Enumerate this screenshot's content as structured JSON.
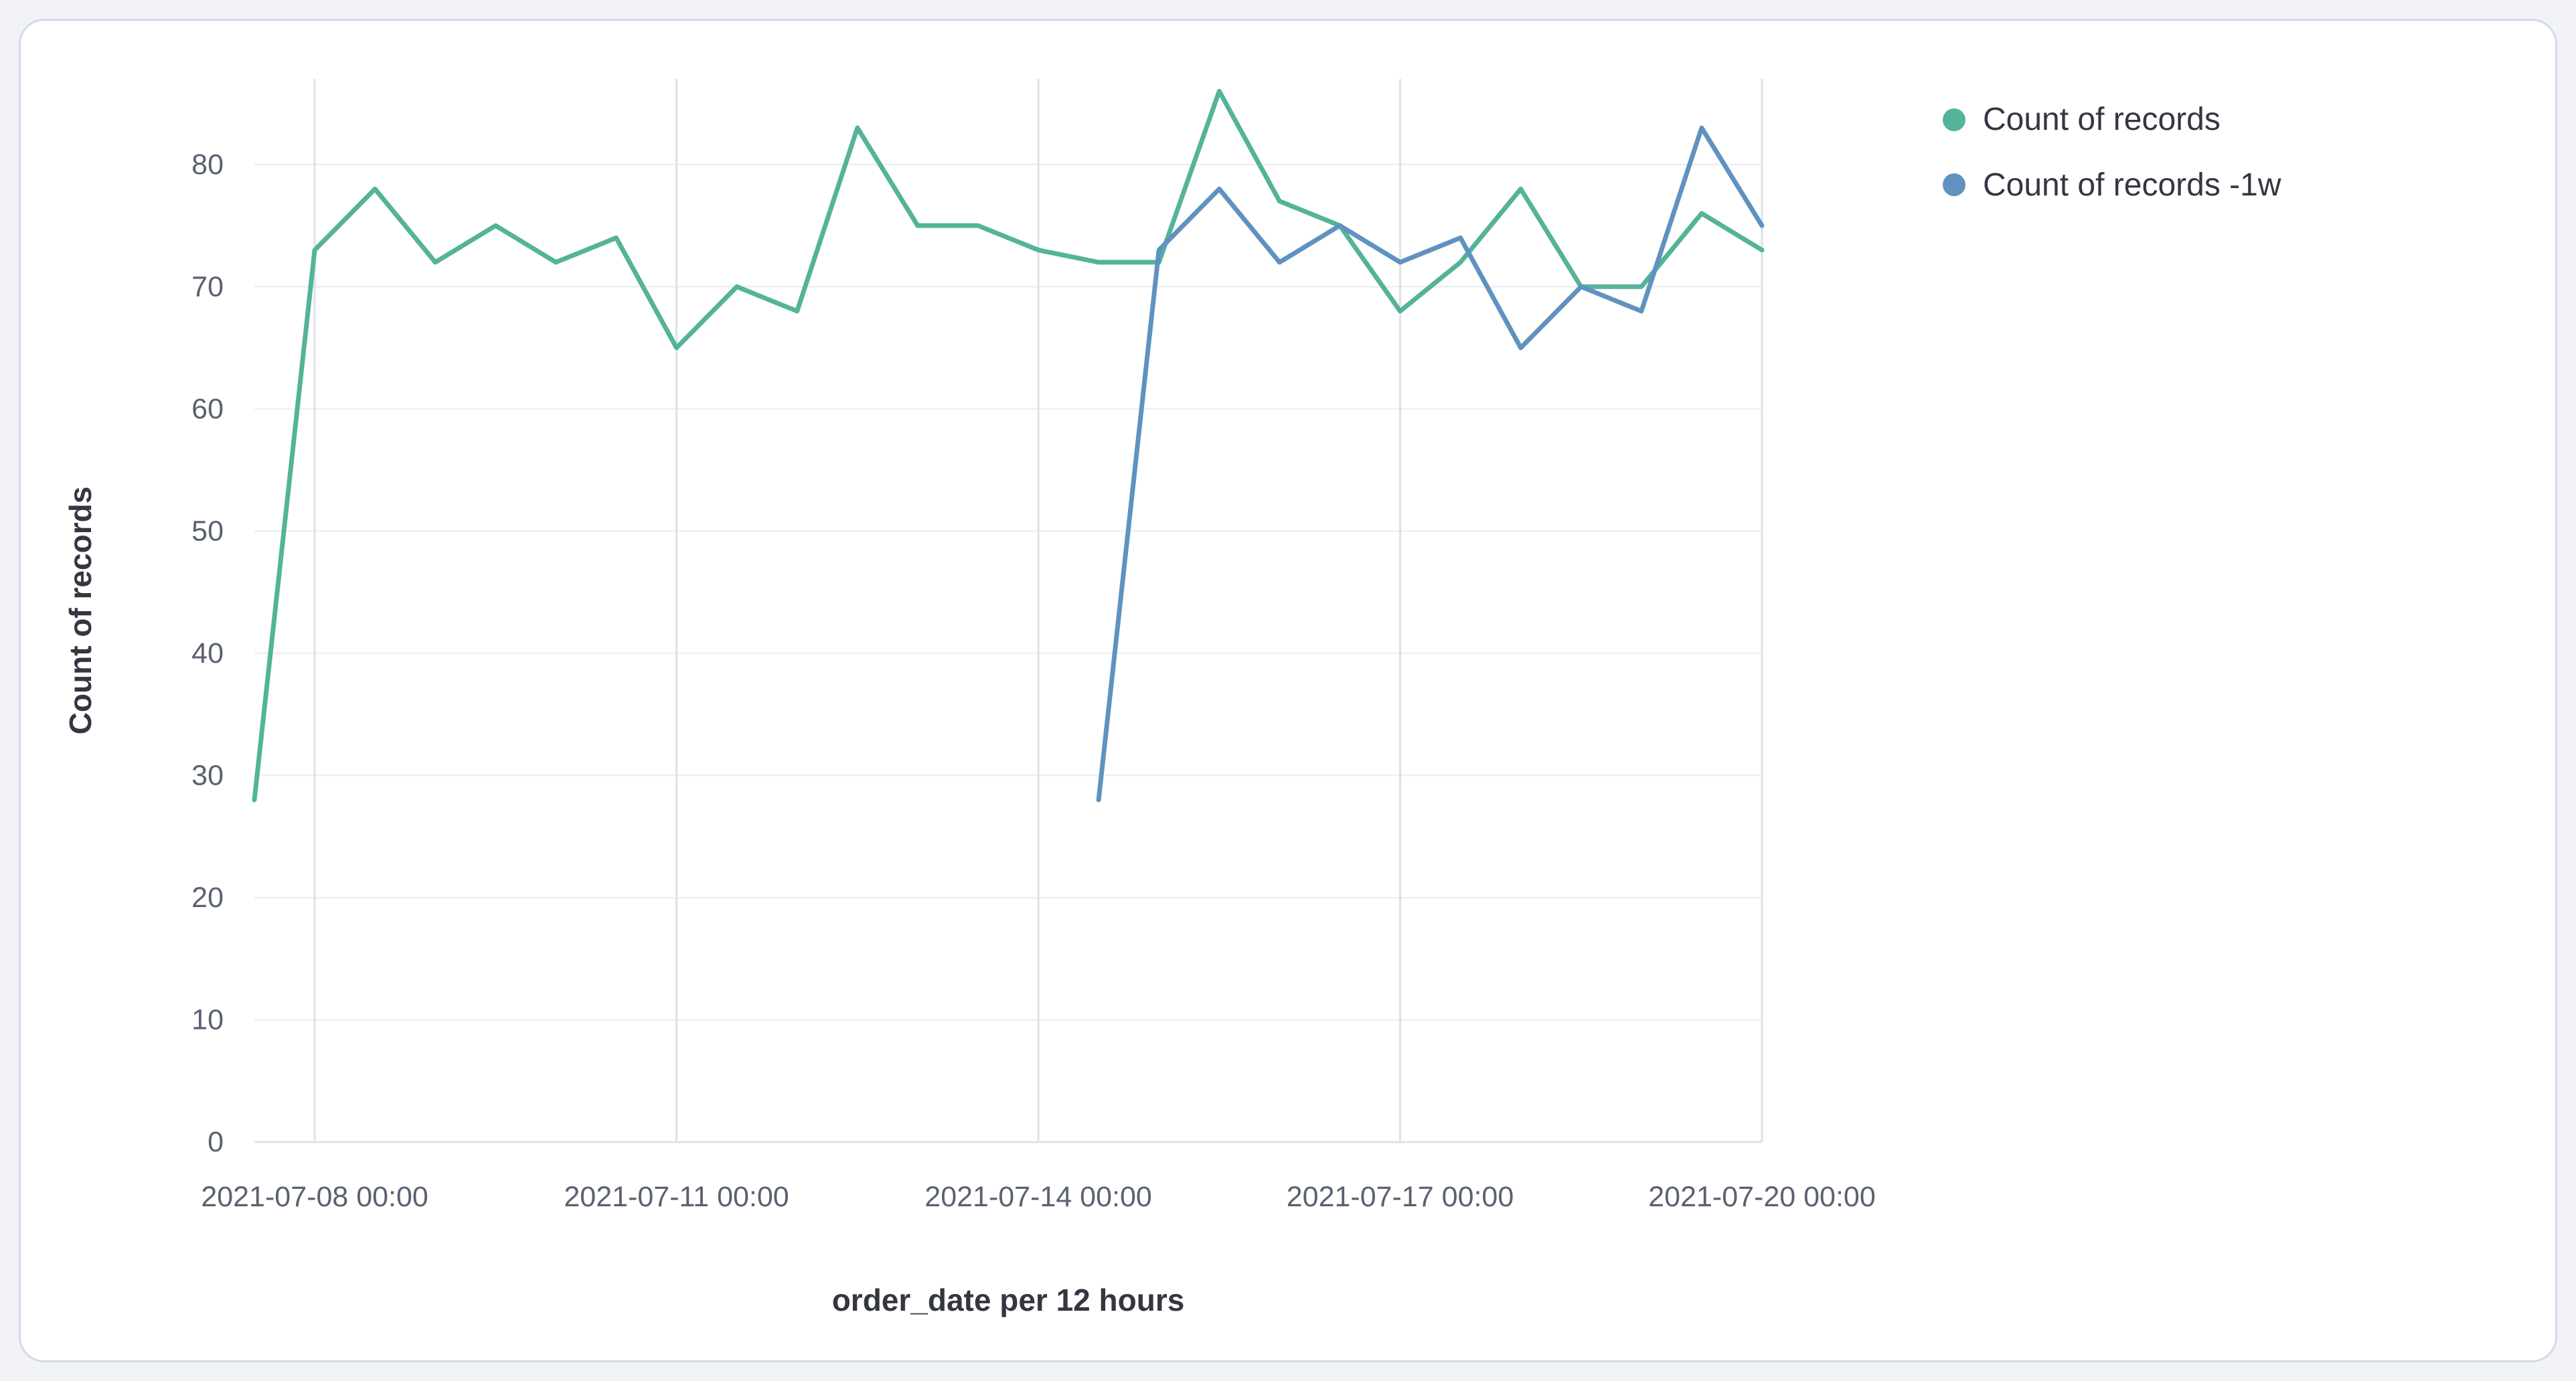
{
  "panel": {
    "background": "#ffffff",
    "border_color": "#d3dae6"
  },
  "chart_data": {
    "type": "line",
    "title": "",
    "xlabel": "order_date per 12 hours",
    "ylabel": "Count of records",
    "ylim": [
      0,
      87
    ],
    "yticks": [
      0,
      10,
      20,
      30,
      40,
      50,
      60,
      70,
      80
    ],
    "grid": true,
    "legend_position": "right",
    "x_interval": "12 hours",
    "x_index_count": 26,
    "x_tick_indices": [
      1,
      7,
      13,
      19,
      25
    ],
    "x_tick_labels": [
      "2021-07-08 00:00",
      "2021-07-11 00:00",
      "2021-07-14 00:00",
      "2021-07-17 00:00",
      "2021-07-20 00:00"
    ],
    "series": [
      {
        "name": "Count of records",
        "color": "#54b399",
        "start_index": 0,
        "values": [
          28,
          73,
          78,
          72,
          75,
          72,
          74,
          65,
          70,
          68,
          83,
          75,
          75,
          73,
          72,
          72,
          86,
          77,
          75,
          68,
          72,
          78,
          70,
          70,
          76,
          73
        ]
      },
      {
        "name": "Count of records -1w",
        "color": "#6092c0",
        "start_index": 14,
        "values": [
          28,
          73,
          78,
          72,
          75,
          72,
          74,
          65,
          70,
          68,
          83,
          75
        ]
      }
    ]
  }
}
